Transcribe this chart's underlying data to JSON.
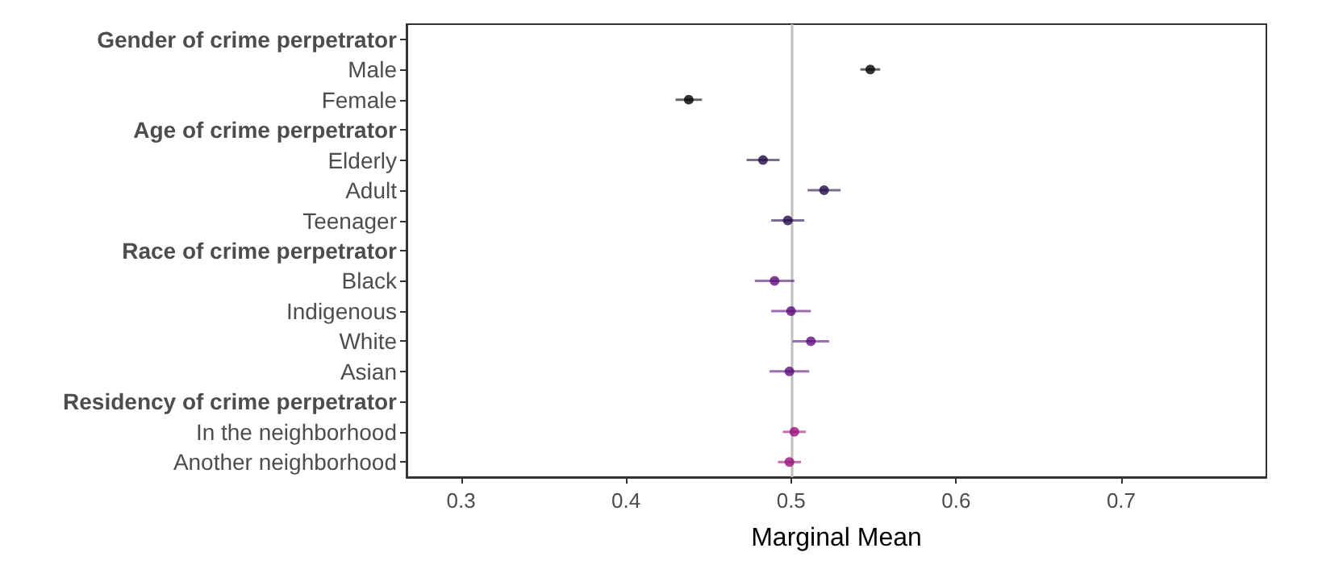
{
  "chart_data": {
    "type": "scatter",
    "orientation": "horizontal",
    "xlabel": "Marginal Mean",
    "categories": [
      "Gender of crime perpetrator",
      "Male",
      "Female",
      "Age of crime perpetrator",
      "Elderly",
      "Adult",
      "Teenager",
      "Race of crime perpetrator",
      "Black",
      "Indigenous",
      "White",
      "Asian",
      "Residency of crime perpetrator",
      "In the neighborhood",
      "Another neighborhood"
    ],
    "values": [
      null,
      0.548,
      0.438,
      null,
      0.483,
      0.52,
      0.498,
      null,
      0.49,
      0.5,
      0.512,
      0.499,
      null,
      0.502,
      0.499
    ],
    "errors": [
      null,
      0.006,
      0.008,
      null,
      0.01,
      0.01,
      0.01,
      null,
      0.012,
      0.012,
      0.011,
      0.012,
      null,
      0.007,
      0.007
    ],
    "colors": [
      null,
      "#000000",
      "#000000",
      null,
      "#220a48",
      "#220a48",
      "#220a48",
      null,
      "#5e0c7c",
      "#5e0c7c",
      "#5e0c7c",
      "#5e0c7c",
      null,
      "#9c0f7e",
      "#9c0f7e"
    ],
    "xlim": [
      0.267,
      0.788
    ],
    "xticks": [
      0.3,
      0.4,
      0.5,
      0.6,
      0.7
    ],
    "ref_lines": [
      {
        "axis": "x",
        "value": 0.5,
        "color": "#bebebe"
      }
    ],
    "grid": false,
    "legend": false,
    "marker": "circle"
  }
}
